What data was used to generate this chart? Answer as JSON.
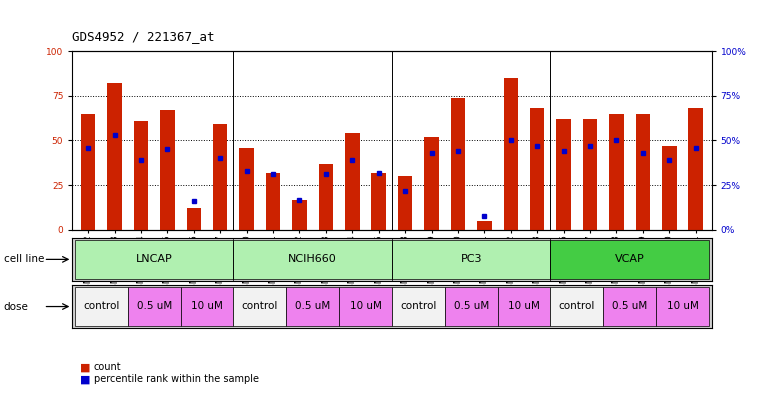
{
  "title": "GDS4952 / 221367_at",
  "samples": [
    "GSM1359772",
    "GSM1359773",
    "GSM1359774",
    "GSM1359775",
    "GSM1359776",
    "GSM1359777",
    "GSM1359760",
    "GSM1359761",
    "GSM1359762",
    "GSM1359763",
    "GSM1359764",
    "GSM1359765",
    "GSM1359778",
    "GSM1359779",
    "GSM1359780",
    "GSM1359781",
    "GSM1359782",
    "GSM1359783",
    "GSM1359766",
    "GSM1359767",
    "GSM1359768",
    "GSM1359769",
    "GSM1359770",
    "GSM1359771"
  ],
  "counts": [
    65,
    82,
    61,
    67,
    12,
    59,
    46,
    32,
    17,
    37,
    54,
    32,
    30,
    52,
    74,
    5,
    85,
    68,
    62,
    62,
    65,
    65,
    47,
    68
  ],
  "percentiles": [
    46,
    53,
    39,
    45,
    16,
    40,
    33,
    31,
    17,
    31,
    39,
    32,
    22,
    43,
    44,
    8,
    50,
    47,
    44,
    47,
    50,
    43,
    39,
    46
  ],
  "cell_line_data": [
    {
      "name": "LNCAP",
      "start": 0,
      "end": 6,
      "color": "#b0f0b0"
    },
    {
      "name": "NCIH660",
      "start": 6,
      "end": 12,
      "color": "#b0f0b0"
    },
    {
      "name": "PC3",
      "start": 12,
      "end": 18,
      "color": "#b0f0b0"
    },
    {
      "name": "VCAP",
      "start": 18,
      "end": 24,
      "color": "#44cc44"
    }
  ],
  "dose_groups": [
    {
      "label": "control",
      "start": 0,
      "end": 2
    },
    {
      "label": "0.5 uM",
      "start": 2,
      "end": 4
    },
    {
      "label": "10 uM",
      "start": 4,
      "end": 6
    },
    {
      "label": "control",
      "start": 6,
      "end": 8
    },
    {
      "label": "0.5 uM",
      "start": 8,
      "end": 10
    },
    {
      "label": "10 uM",
      "start": 10,
      "end": 12
    },
    {
      "label": "control",
      "start": 12,
      "end": 14
    },
    {
      "label": "0.5 uM",
      "start": 14,
      "end": 16
    },
    {
      "label": "10 uM",
      "start": 16,
      "end": 18
    },
    {
      "label": "control",
      "start": 18,
      "end": 20
    },
    {
      "label": "0.5 uM",
      "start": 20,
      "end": 22
    },
    {
      "label": "10 uM",
      "start": 22,
      "end": 24
    }
  ],
  "bar_color": "#cc2200",
  "dot_color": "#0000cc",
  "ylim": [
    0,
    100
  ],
  "yticks": [
    0,
    25,
    50,
    75,
    100
  ],
  "background_color": "#ffffff",
  "title_fontsize": 9,
  "tick_fontsize": 6.5,
  "ann_fontsize": 7.5,
  "cell_fontsize": 8,
  "dose_fontsize": 7.5,
  "legend_fontsize": 7,
  "bar_width": 0.55,
  "dose_color_control": "#f2f2f2",
  "dose_color_um": "#ee82ee",
  "cell_bg": "#d0d0d0"
}
